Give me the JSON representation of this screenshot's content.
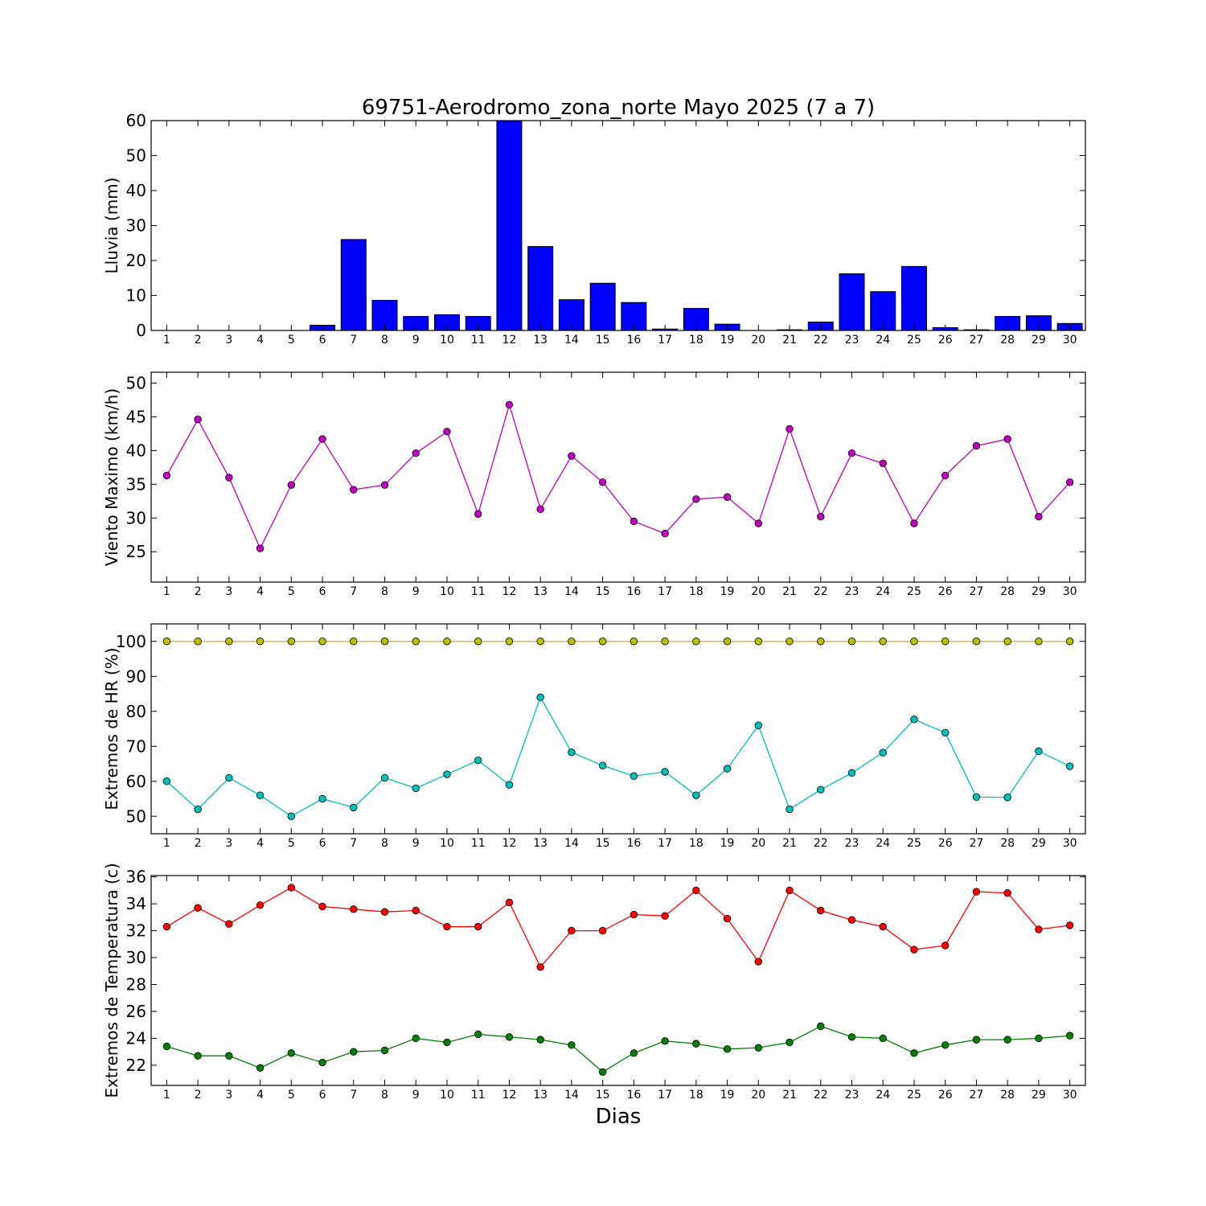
{
  "chart_data": {
    "title": "69751-Aerodromo_zona_norte Mayo 2025  (7 a 7)",
    "xlabel": "Dias",
    "days": [
      1,
      2,
      3,
      4,
      5,
      6,
      7,
      8,
      9,
      10,
      11,
      12,
      13,
      14,
      15,
      16,
      17,
      18,
      19,
      20,
      21,
      22,
      23,
      24,
      25,
      26,
      27,
      28,
      29,
      30
    ],
    "panels": [
      {
        "type": "bar",
        "ylabel": "Lluvia (mm)",
        "ylim": [
          0,
          60
        ],
        "yticks": [
          0,
          10,
          20,
          30,
          40,
          50,
          60
        ],
        "series": [
          {
            "color": "#0000ff",
            "values": [
              0,
              0,
              0,
              0,
              0,
              1.5,
              26,
              8.6,
              4,
              4.5,
              4,
              60,
              24,
              8.8,
              13.5,
              8,
              0.4,
              6.3,
              1.8,
              0,
              0.2,
              2.4,
              16.2,
              11.1,
              18.3,
              0.8,
              0.2,
              4,
              4.2,
              2
            ]
          }
        ]
      },
      {
        "type": "line",
        "ylabel": "Viento Maximo (km/h)",
        "ylim": [
          20.5,
          51.6
        ],
        "yticks": [
          25,
          30,
          35,
          40,
          45,
          50
        ],
        "series": [
          {
            "color": "#bf00bf",
            "values": [
              36.3,
              44.6,
              36,
              25.5,
              34.9,
              41.7,
              34.2,
              34.9,
              39.6,
              42.8,
              30.6,
              46.8,
              31.3,
              39.2,
              35.3,
              29.5,
              27.7,
              32.8,
              33.1,
              29.2,
              43.2,
              30.2,
              39.6,
              38.1,
              29.2,
              36.3,
              40.7,
              41.7,
              30.2,
              35.3
            ]
          }
        ]
      },
      {
        "type": "line",
        "ylabel": "Extremos de HR (%)",
        "ylim": [
          45,
          105
        ],
        "yticks": [
          50,
          60,
          70,
          80,
          90,
          100
        ],
        "series": [
          {
            "color": "#bfbf00",
            "values": [
              100,
              100,
              100,
              100,
              100,
              100,
              100,
              100,
              100,
              100,
              100,
              100,
              100,
              100,
              100,
              100,
              100,
              100,
              100,
              100,
              100,
              100,
              100,
              100,
              100,
              100,
              100,
              100,
              100,
              100
            ]
          },
          {
            "color": "#00bfbf",
            "values": [
              60,
              52,
              61,
              56,
              50,
              55,
              52.5,
              61,
              58,
              62,
              66,
              59,
              84,
              68.3,
              64.5,
              61.5,
              62.7,
              56,
              63.6,
              76,
              52,
              57.6,
              62.4,
              68.2,
              77.7,
              73.9,
              55.5,
              55.4,
              68.6,
              64.3
            ]
          }
        ]
      },
      {
        "type": "line",
        "ylabel": "Extremos de Temperatura (c)",
        "ylim": [
          20.5,
          36.1
        ],
        "yticks": [
          22,
          24,
          26,
          28,
          30,
          32,
          34,
          36
        ],
        "series": [
          {
            "color": "#ff0000",
            "values": [
              32.3,
              33.7,
              32.5,
              33.9,
              35.2,
              33.8,
              33.6,
              33.4,
              33.5,
              32.3,
              32.3,
              34.1,
              29.3,
              32,
              32,
              33.2,
              33.1,
              35,
              32.9,
              29.7,
              35,
              33.5,
              32.8,
              32.3,
              30.6,
              30.9,
              34.9,
              34.8,
              32.1,
              32.4
            ]
          },
          {
            "color": "#008000",
            "values": [
              23.4,
              22.7,
              22.7,
              21.8,
              22.9,
              22.2,
              23,
              23.1,
              24,
              23.7,
              24.3,
              24.1,
              23.9,
              23.5,
              21.5,
              22.9,
              23.8,
              23.6,
              23.2,
              23.3,
              23.7,
              24.9,
              24.1,
              24,
              22.9,
              23.5,
              23.9,
              23.9,
              24,
              24.2
            ]
          }
        ]
      }
    ]
  }
}
